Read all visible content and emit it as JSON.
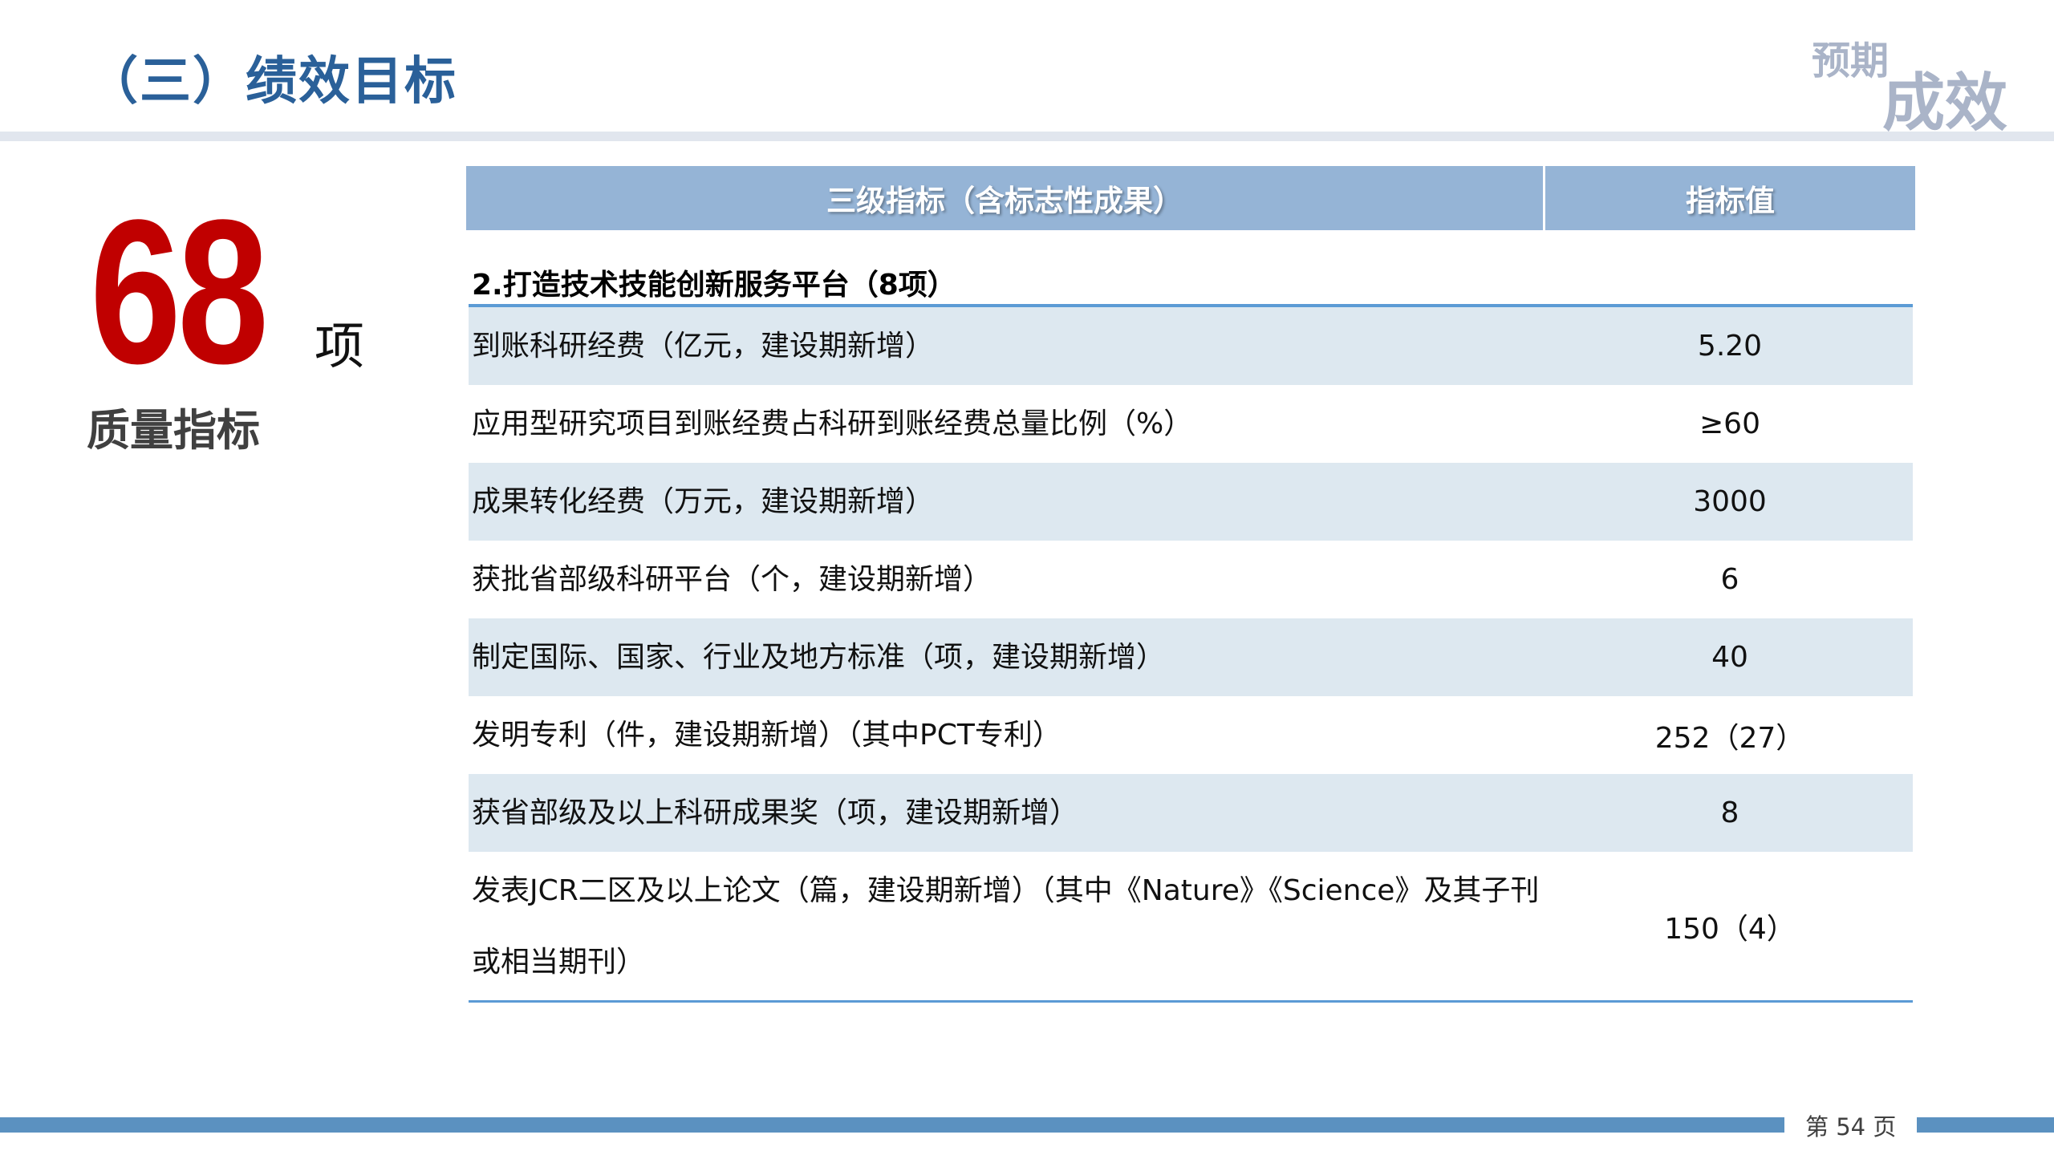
{
  "header": {
    "title": "（三）绩效目标",
    "logo_line1": "预期",
    "logo_line2": "成效"
  },
  "summary": {
    "count": "68",
    "unit": "项",
    "label": "质量指标"
  },
  "table": {
    "columns": [
      "三级指标（含标志性成果）",
      "指标值"
    ],
    "section_title": "2.打造技术技能创新服务平台（8项）",
    "rows": [
      {
        "indicator": "到账科研经费（亿元，建设期新增）",
        "value": "5.20"
      },
      {
        "indicator": "应用型研究项目到账经费占科研到账经费总量比例（%）",
        "value": "≥60"
      },
      {
        "indicator": "成果转化经费（万元，建设期新增）",
        "value": "3000"
      },
      {
        "indicator": "获批省部级科研平台（个，建设期新增）",
        "value": "6"
      },
      {
        "indicator": "制定国际、国家、行业及地方标准（项，建设期新增）",
        "value": "40"
      },
      {
        "indicator": "发明专利（件，建设期新增）（其中PCT专利）",
        "value": "252（27）"
      },
      {
        "indicator": "获省部级及以上科研成果奖（项，建设期新增）",
        "value": "8"
      },
      {
        "indicator": "发表JCR二区及以上论文（篇，建设期新增）（其中《Nature》《Science》及其子刊或相当期刊）",
        "value": "150（4）"
      }
    ]
  },
  "footer": {
    "page_label": "第 54 页"
  },
  "colors": {
    "title": "#2a6099",
    "accent_red": "#c00000",
    "table_header": "#95b4d6",
    "row_shade": "#dde8f0",
    "rule": "#5b9bd5",
    "footer_bar": "#5b91c0"
  }
}
